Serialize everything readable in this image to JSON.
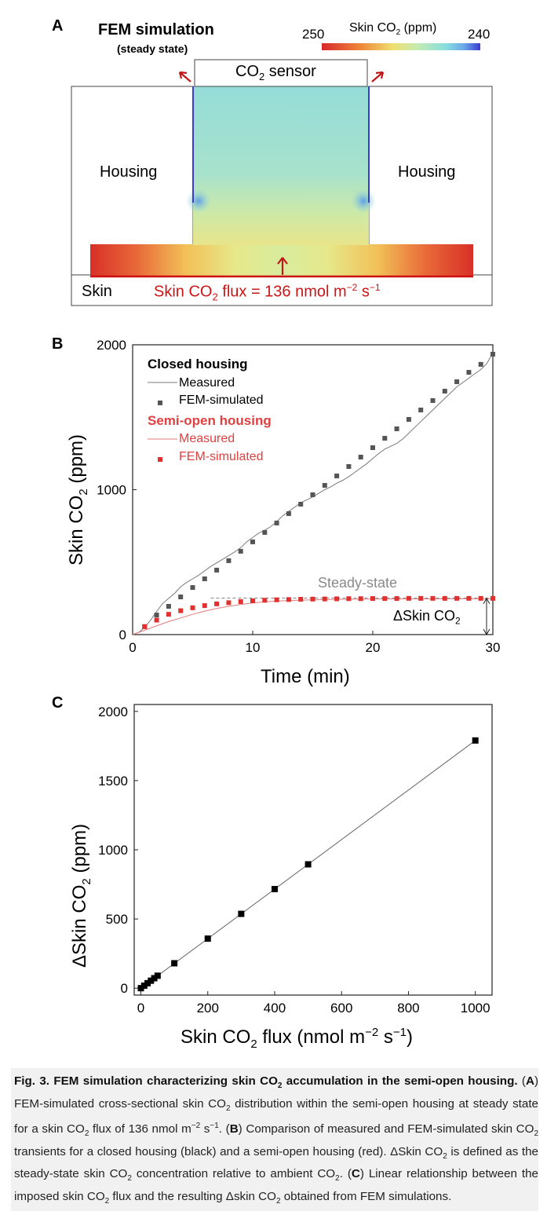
{
  "panel_a": {
    "letter": "A",
    "title": "FEM simulation",
    "subtitle": "(steady state)",
    "colorbar": {
      "label": "Skin CO",
      "label_sub": "2",
      "label_unit": " (ppm)",
      "min_label": "250",
      "max_label": "240",
      "colors": [
        "#d8282a",
        "#ee7a3a",
        "#f3d35a",
        "#cfe9a8",
        "#9fe3dc",
        "#7cc6e8",
        "#3a4fd0"
      ]
    },
    "sensor_label": "CO",
    "sensor_sub": "2",
    "sensor_suffix": " sensor",
    "housing_left": "Housing",
    "housing_right": "Housing",
    "skin_label": "Skin",
    "flux_prefix": "Skin CO",
    "flux_sub": "2",
    "flux_mid": " flux = 136 nmol m",
    "flux_sup1": "−2",
    "flux_s": " s",
    "flux_sup2": "−1"
  },
  "chart_data": [
    {
      "panel": "B",
      "type": "line",
      "xlabel": "Time (min)",
      "ylabel": "Skin CO2 (ppm)",
      "xlim": [
        0,
        30
      ],
      "ylim": [
        0,
        2000
      ],
      "xticks": [
        0,
        10,
        20,
        30
      ],
      "yticks": [
        0,
        1000,
        2000
      ],
      "legend": {
        "closed_title": "Closed housing",
        "closed_measured": "Measured",
        "closed_sim": "FEM-simulated",
        "open_title": "Semi-open housing",
        "open_measured": "Measured",
        "open_sim": "FEM-simulated"
      },
      "annotation_steady": "Steady-state",
      "annotation_delta": "ΔSkin CO",
      "annotation_delta_sub": "2",
      "series": [
        {
          "name": "Closed housing FEM-simulated",
          "color": "#555555",
          "x": [
            1,
            2,
            3,
            4,
            5,
            6,
            7,
            8,
            9,
            10,
            11,
            12,
            13,
            14,
            15,
            16,
            17,
            18,
            19,
            20,
            21,
            22,
            23,
            24,
            25,
            26,
            27,
            28,
            29,
            30
          ],
          "y": [
            55,
            135,
            195,
            260,
            325,
            385,
            445,
            510,
            575,
            640,
            705,
            770,
            835,
            900,
            965,
            1030,
            1095,
            1160,
            1225,
            1290,
            1355,
            1420,
            1485,
            1550,
            1615,
            1680,
            1745,
            1810,
            1865,
            1935
          ]
        },
        {
          "name": "Semi-open housing FEM-simulated",
          "color": "#e03030",
          "x": [
            1,
            2,
            3,
            4,
            5,
            6,
            7,
            8,
            9,
            10,
            11,
            12,
            13,
            14,
            15,
            16,
            17,
            18,
            19,
            20,
            21,
            22,
            23,
            24,
            25,
            26,
            27,
            28,
            29,
            30
          ],
          "y": [
            55,
            100,
            140,
            165,
            185,
            200,
            212,
            220,
            228,
            233,
            237,
            240,
            242,
            244,
            245,
            246,
            247,
            248,
            248,
            249,
            249,
            249,
            250,
            250,
            250,
            250,
            250,
            250,
            250,
            250
          ]
        },
        {
          "name": "Closed housing Measured",
          "color": "#7a7a7a",
          "x": [
            0,
            0.5,
            1,
            1.5,
            2,
            2.5,
            3,
            3.5,
            4,
            4.5,
            5,
            5.5,
            6,
            6.5,
            7,
            7.5,
            8,
            8.5,
            9,
            9.5,
            10,
            10.5,
            11,
            11.5,
            12,
            12.5,
            13,
            13.5,
            14,
            14.5,
            15,
            15.5,
            16,
            16.5,
            17,
            17.5,
            18,
            18.5,
            19,
            19.5,
            20,
            20.5,
            21,
            21.5,
            22,
            22.5,
            23,
            23.5,
            24,
            24.5,
            25,
            25.5,
            26,
            26.5,
            27,
            27.5,
            28,
            28.5,
            29,
            29.5,
            30
          ],
          "y": [
            0,
            15,
            50,
            100,
            160,
            215,
            250,
            285,
            330,
            360,
            385,
            410,
            440,
            470,
            495,
            520,
            545,
            570,
            600,
            640,
            670,
            700,
            720,
            745,
            780,
            820,
            850,
            880,
            910,
            930,
            950,
            975,
            1000,
            1020,
            1045,
            1065,
            1090,
            1120,
            1150,
            1180,
            1215,
            1250,
            1280,
            1300,
            1320,
            1350,
            1390,
            1430,
            1470,
            1510,
            1550,
            1590,
            1630,
            1670,
            1710,
            1740,
            1770,
            1800,
            1830,
            1870,
            1945
          ]
        },
        {
          "name": "Semi-open housing Measured",
          "color": "#e37a7a",
          "x": [
            0,
            1,
            2,
            3,
            4,
            5,
            6,
            7,
            8,
            9,
            10,
            11,
            12,
            14,
            16,
            18,
            20,
            22,
            24,
            26,
            28,
            30
          ],
          "y": [
            0,
            30,
            60,
            90,
            115,
            140,
            162,
            180,
            195,
            208,
            218,
            226,
            232,
            238,
            242,
            244,
            245,
            246,
            246,
            247,
            247,
            247
          ]
        }
      ]
    },
    {
      "panel": "C",
      "type": "scatter",
      "xlabel": "Skin CO2 flux (nmol m−2 s−1)",
      "ylabel": "ΔSkin CO2 (ppm)",
      "xlim": [
        -20,
        1050
      ],
      "ylim": [
        -50,
        2050
      ],
      "xticks": [
        0,
        200,
        400,
        600,
        800,
        1000
      ],
      "yticks": [
        0,
        500,
        1000,
        1500,
        2000
      ],
      "series": [
        {
          "name": "FEM simulations",
          "x": [
            0,
            10,
            20,
            30,
            40,
            50,
            100,
            200,
            300,
            400,
            500,
            1000
          ],
          "y": [
            0,
            18,
            36,
            54,
            72,
            90,
            180,
            358,
            537,
            716,
            895,
            1790
          ]
        }
      ],
      "fit": {
        "x": [
          0,
          1000
        ],
        "y": [
          0,
          1790
        ]
      }
    }
  ],
  "panel_b": {
    "letter": "B",
    "ylabel_main": "Skin CO",
    "ylabel_sub": "2",
    "ylabel_unit": " (ppm)",
    "xlabel": "Time (min)"
  },
  "panel_c": {
    "letter": "C",
    "ylabel_main": "ΔSkin CO",
    "ylabel_sub": "2",
    "ylabel_unit": " (ppm)",
    "xlabel_main": "Skin CO",
    "xlabel_sub": "2",
    "xlabel_mid": " flux (nmol m",
    "xlabel_sup1": "−2",
    "xlabel_s": " s",
    "xlabel_sup2": "−1",
    "xlabel_end": ")"
  },
  "caption": {
    "fig_label": "Fig. 3.",
    "title_a": " FEM simulation characterizing skin CO",
    "title_sub": "2",
    "title_b": " accumulation in the semi-open housing.",
    "p1": " (",
    "lA": "A",
    "tA1": ") FEM-simulated cross-sectional skin CO",
    "tA2": " distribution within the semi-open housing at steady state for a skin CO",
    "tA3": " flux of 136 nmol m",
    "tA_sup1": "−2",
    "tA4": " s",
    "tA_sup2": "−1",
    "tA5": ". (",
    "lB": "B",
    "tB1": ") Comparison of measured and FEM-simulated skin CO",
    "tB2": " transients for a closed housing (black) and a semi-open housing (red). ΔSkin CO",
    "tB3": " is defined as the steady-state skin CO",
    "tB4": " concentration relative to ambient CO",
    "tB5": ". (",
    "lC": "C",
    "tC1": ") Linear relationship between the imposed skin CO",
    "tC2": " flux and the resulting Δskin CO",
    "tC3": " obtained from FEM simulations.",
    "sub2": "2"
  }
}
